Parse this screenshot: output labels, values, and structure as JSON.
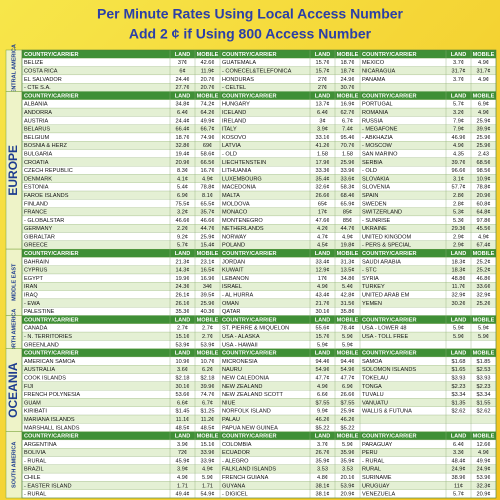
{
  "header": {
    "title": "Per Minute Rates Using Local Access Number",
    "subtitle": "Add 2 ¢ if Using 800 Access Number"
  },
  "regions": [
    {
      "name": "CENTRAL AMERICA",
      "header": [
        "COUNTRY/CARRIER",
        "LAND",
        "MOBILE",
        "COUNTRY/CARRIER",
        "LAND",
        "MOBILE",
        "COUNTRY/CARRIER",
        "LAND",
        "MOBILE"
      ],
      "rows": [
        [
          "BELIZE",
          "37¢",
          "42.6¢",
          "GUATEMALA",
          "15.7¢",
          "18.7¢",
          "MEXICO",
          "3.7¢",
          "4.9¢"
        ],
        [
          "COSTA RICA",
          "6¢",
          "11.9¢",
          "- CONECEL&TELEFONICA",
          "15.7¢",
          "18.7¢",
          "NICARAGUA",
          "31.7¢",
          "31.7¢"
        ],
        [
          "EL SALVADOR",
          "24.4¢",
          "20.7¢",
          "HONDURAS",
          "27¢",
          "24.9¢",
          "PANAMA",
          "3.7¢",
          "4.9¢"
        ],
        [
          "- CTE S.A.",
          "27.7¢",
          "20.7¢",
          "- CELTEL",
          "27¢",
          "30.7¢",
          null,
          null,
          null
        ]
      ]
    },
    {
      "name": "EUROPE",
      "header": [
        "COUNTRY/CARRIER",
        "LAND",
        "MOBILE",
        "COUNTRY/CARRIER",
        "LAND",
        "MOBILE",
        "COUNTRY/CARRIER",
        "LAND",
        "MOBILE"
      ],
      "rows": [
        [
          "ALBANIA",
          "34.8¢",
          "74.2¢",
          "HUNGARY",
          "13.7¢",
          "16.9¢",
          "PORTUGAL",
          "5.7¢",
          "6.9¢"
        ],
        [
          "ANDORRA",
          "6.4¢",
          "64.2¢",
          "ICELAND",
          "6.4¢",
          "62.7¢",
          "ROMANIA",
          "3.2¢",
          "4.9¢"
        ],
        [
          "AUSTRIA",
          "24.4¢",
          "49.9¢",
          "IRELAND",
          "3¢",
          "6.7¢",
          "RUSSIA",
          "7.9¢",
          "25.9¢"
        ],
        [
          "BELARUS",
          "66.4¢",
          "66.7¢",
          "ITALY",
          "3.9¢",
          "7.4¢",
          "- MEGAFONE",
          "7.9¢",
          "39.9¢"
        ],
        [
          "BELGIUM",
          "18.7¢",
          "74.9¢",
          "KOSOVO",
          "33.1¢",
          "95.4¢",
          "- ABKHAZIA",
          "46.9¢",
          "25.9¢"
        ],
        [
          "BOSNIA & HERZ",
          "32.8¢",
          "69¢",
          "LATVIA",
          "41.2¢",
          "70.7¢",
          "- MOSCOW",
          "4.9¢",
          "25.9¢"
        ],
        [
          "BULGARIA",
          "19.4¢",
          "58.6¢",
          "- OLD",
          "1.58",
          "1.58",
          "SAN MARINO",
          "4.35",
          "2.43"
        ],
        [
          "CROATIA",
          "20.9¢",
          "66.5¢",
          "LIECHTENSTEIN",
          "17.9¢",
          "25.9¢",
          "SERBIA",
          "39.7¢",
          "68.5¢"
        ],
        [
          "CZECH REPUBLIC",
          "8.3¢",
          "16.7¢",
          "LITHUANIA",
          "33.3¢",
          "33.9¢",
          "- OLD",
          "96.6¢",
          "98.5¢"
        ],
        [
          "DENMARK",
          "4.1¢",
          "4.9¢",
          "LUXEMBOURG",
          "35.4¢",
          "33.6¢",
          "SLOVAKIA",
          "3.1¢",
          "10.9¢"
        ],
        [
          "ESTONIA",
          "5.4¢",
          "78.8¢",
          "MACEDONIA",
          "32.6¢",
          "58.3¢",
          "SLOVENIA",
          "57.7¢",
          "78.8¢"
        ],
        [
          "FAROE ISLANDS",
          "6.9¢",
          "8.1¢",
          "MALTA",
          "26.6¢",
          "68.4¢",
          "SPAIN",
          "2.8¢",
          "20.9¢"
        ],
        [
          "FINLAND",
          "75.5¢",
          "65.5¢",
          "MOLDOVA",
          "65¢",
          "65.9¢",
          "SWEDEN",
          "2.8¢",
          "60.8¢"
        ],
        [
          "FRANCE",
          "3.2¢",
          "35.7¢",
          "MONACO",
          "17¢",
          "85¢",
          "SWITZERLAND",
          "5.3¢",
          "64.8¢"
        ],
        [
          "- GLOBALSTAR",
          "46.6¢",
          "46.6¢",
          "MONTENEGRO",
          "47.6¢",
          "85¢",
          "- SUNRISE",
          "5.3¢",
          "97.8¢"
        ],
        [
          "GERMANY",
          "2.2¢",
          "44.7¢",
          "NETHERLANDS",
          "4.2¢",
          "44.7¢",
          "UKRAINE",
          "29.3¢",
          "45.5¢"
        ],
        [
          "GIBRALTAR",
          "9.2¢",
          "25.9¢",
          "NORWAY",
          "4.7¢",
          "4.9¢",
          "UNITED KINGDOM",
          "2.9¢",
          "4.9¢"
        ],
        [
          "GREECE",
          "5.7¢",
          "15.4¢",
          "POLAND",
          "4.5¢",
          "19.8¢",
          "- PERS & SPECIAL",
          "2.9¢",
          "67.4¢"
        ]
      ]
    },
    {
      "name": "MIDDLE EAST",
      "header": [
        "COUNTRY/CARRIER",
        "LAND",
        "MOBILE",
        "COUNTRY/CARRIER",
        "LAND",
        "MOBILE",
        "COUNTRY/CARRIER",
        "LAND",
        "MOBILE"
      ],
      "rows": [
        [
          "BAHRAIN",
          "21.3¢",
          "23.1¢",
          "JORDAN",
          "33.4¢",
          "31.3¢",
          "SAUDI ARABIA",
          "18.3¢",
          "25.2¢"
        ],
        [
          "CYPRUS",
          "14.3¢",
          "16.5¢",
          "KUWAIT",
          "12.9¢",
          "13.5¢",
          "- STC",
          "18.3¢",
          "25.2¢"
        ],
        [
          "EGYPT",
          "19.9¢",
          "16.9¢",
          "LEBANON",
          "17¢",
          "34.8¢",
          "SYRIA",
          "48.8¢",
          "46.8¢"
        ],
        [
          "IRAN",
          "24.3¢",
          "34¢",
          "ISRAEL",
          "4.9¢",
          "5.4¢",
          "TURKEY",
          "11.7¢",
          "33.6¢"
        ],
        [
          "IRAQ",
          "26.1¢",
          "39.5¢",
          "- AL HURRA",
          "43.4¢",
          "42.8¢",
          "UNITED ARAB EM",
          "32.9¢",
          "32.9¢"
        ],
        [
          "- EWA",
          "26.1¢",
          "25.9¢",
          "OMAN",
          "21.7¢",
          "31.5¢",
          "YEMEN",
          "30.2¢",
          "25.2¢"
        ],
        [
          "PALESTINE",
          "35.3¢",
          "40.3¢",
          "QATAR",
          "30.1¢",
          "35.8¢",
          null,
          null,
          null
        ]
      ]
    },
    {
      "name": "NORTH AMERICA",
      "header": [
        "COUNTRY/CARRIER",
        "LAND",
        "MOBILE",
        "COUNTRY/CARRIER",
        "LAND",
        "MOBILE",
        "COUNTRY/CARRIER",
        "LAND",
        "MOBILE"
      ],
      "rows": [
        [
          "CANADA",
          "2.7¢",
          "2.7¢",
          "ST. PIERRE & MIQUELON",
          "55.6¢",
          "78.4¢",
          "USA - LOWER 48",
          "5.9¢",
          "5.9¢"
        ],
        [
          "- N. TERRITORIES",
          "15.1¢",
          "2.7¢",
          "USA - ALASKA",
          "15.7¢",
          "5.9¢",
          "USA - TOLL FREE",
          "5.9¢",
          "5.9¢"
        ],
        [
          "GREENLAND",
          "53.9¢",
          "53.9¢",
          "USA - HAWAII",
          "5.9¢",
          "5.9¢",
          null,
          null,
          null
        ]
      ]
    },
    {
      "name": "OCEANIA",
      "header": [
        "COUNTRY/CARRIER",
        "LAND",
        "MOBILE",
        "COUNTRY/CARRIER",
        "LAND",
        "MOBILE",
        "COUNTRY/CARRIER",
        "LAND",
        "MOBILE"
      ],
      "rows": [
        [
          "AMERICAN SAMOA",
          "10.9¢",
          "10.7¢",
          "MICRONESIA",
          "94.4¢",
          "94.4¢",
          "SAMOA",
          "$1.68",
          "$1.85"
        ],
        [
          "AUSTRALIA",
          "3.6¢",
          "6.2¢",
          "NAURU",
          "54.9¢",
          "54.9¢",
          "SOLOMON ISLANDS",
          "$1.65",
          "$2.53"
        ],
        [
          "COOK ISLANDS",
          "$2.18",
          "$2.18",
          "NEW CALEDONIA",
          "47.7¢",
          "47.7¢",
          "TOKELAU",
          "$3.93",
          "$3.93"
        ],
        [
          "FIJI",
          "30.1¢",
          "39.9¢",
          "NEW ZEALAND",
          "4.9¢",
          "6.9¢",
          "TONGA",
          "$2.23",
          "$2.23"
        ],
        [
          "FRENCH POLYNESIA",
          "53.6¢",
          "74.7¢",
          "NEW ZEALAND SCOTT",
          "6.6¢",
          "26.6¢",
          "TUVALU",
          "$3.34",
          "$3.34"
        ],
        [
          "GUAM",
          "6.6¢",
          "6.7¢",
          "NIUE",
          "$7.55",
          "$7.55",
          "VANUATU",
          "$1.35",
          "$1.55"
        ],
        [
          "KIRIBATI",
          "$1.45",
          "$1.25",
          "NORFOLK ISLAND",
          "9.9¢",
          "25.9¢",
          "WALLIS & FUTUNA",
          "$2.62",
          "$2.62"
        ],
        [
          "MARIANA ISLANDS",
          "11.1¢",
          "11.2¢",
          "PALAU",
          "46.2¢",
          "46.2¢",
          null,
          null,
          null
        ],
        [
          "MARSHALL ISLANDS",
          "48.5¢",
          "48.5¢",
          "PAPUA NEW GUINEA",
          "$5.22",
          "$5.22",
          null,
          null,
          null
        ]
      ]
    },
    {
      "name": "SOUTH AMERICA",
      "header": [
        "COUNTRY/CARRIER",
        "LAND",
        "MOBILE",
        "COUNTRY/CARRIER",
        "LAND",
        "MOBILE",
        "COUNTRY/CARRIER",
        "LAND",
        "MOBILE"
      ],
      "rows": [
        [
          "ARGENTINA",
          "3.9¢",
          "15.1¢",
          "COLOMBIA",
          "3.7¢",
          "5.9¢",
          "PARAGUAY",
          "6.4¢",
          "12.6¢"
        ],
        [
          "BOLIVIA",
          "72¢",
          "33.9¢",
          "ECUADOR",
          "26.7¢",
          "35.9¢",
          "PERU",
          "3.3¢",
          "4.9¢"
        ],
        [
          "- RURAL",
          "45.9¢",
          "33.9¢",
          "- ALEGRO",
          "35.9¢",
          "35.9¢",
          "- RURAL",
          "48.4¢",
          "49.9¢"
        ],
        [
          "BRAZIL",
          "3.9¢",
          "4.9¢",
          "FALKLAND ISLANDS",
          "3.53",
          "3.53",
          "RURAL",
          "24.9¢",
          "24.9¢"
        ],
        [
          "CHILE",
          "4.9¢",
          "5.9¢",
          "FRENCH GUIANA",
          "4.8¢",
          "20.1¢",
          "SURINAME",
          "38.9¢",
          "53.9¢"
        ],
        [
          "- EASTER ISLAND",
          "1.71",
          "1.71",
          "GUYANA",
          "38.1¢",
          "53.9¢",
          "URUGUAY",
          "11¢",
          "32.3¢"
        ],
        [
          "- RURAL",
          "49.4¢",
          "54.9¢",
          "- DIGICEL",
          "38.1¢",
          "20.9¢",
          "VENEZUELA",
          "5.7¢",
          "20.9¢"
        ]
      ]
    }
  ]
}
